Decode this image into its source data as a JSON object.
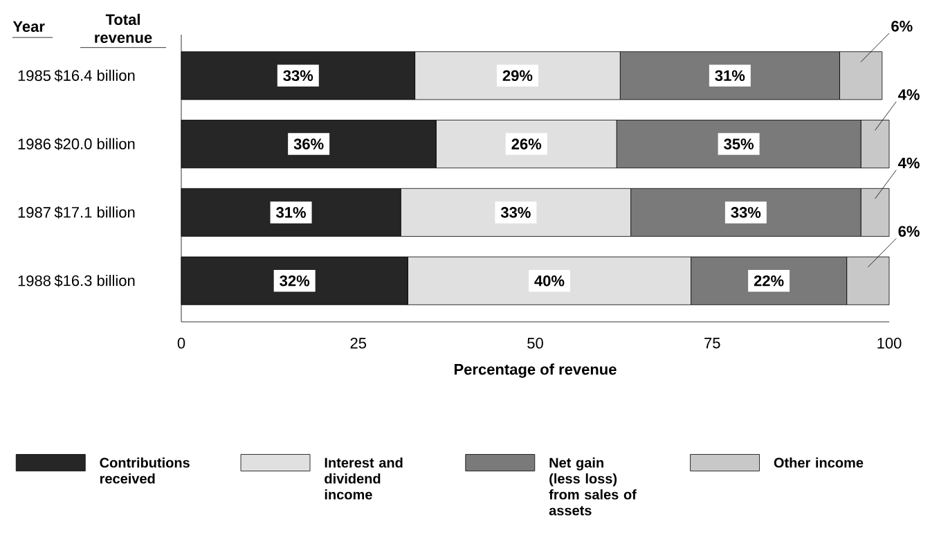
{
  "chart_data": {
    "type": "bar",
    "orientation": "horizontal",
    "stacked": true,
    "ylabel": "Year",
    "xlabel": "Percentage of revenue",
    "categories": [
      "1985",
      "1986",
      "1987",
      "1988"
    ],
    "annotations": [
      "Total revenue",
      "$16.4 billion",
      "$20.0 billion",
      "$17.1 billion",
      "$16.3 billion"
    ],
    "xlim": [
      0,
      100
    ],
    "xticks": [
      0,
      25,
      50,
      75,
      100
    ],
    "legend": "bottom",
    "series": [
      {
        "name": "Contributions received",
        "color": "#262626",
        "values": [
          33,
          36,
          31,
          32
        ],
        "value_labels": [
          "33%",
          "36%",
          "31%",
          "32%"
        ]
      },
      {
        "name": "Interest and dividend income",
        "color": "#e0e0e0",
        "values": [
          29,
          25.5,
          32.5,
          40
        ],
        "value_labels": [
          "29%",
          "26%",
          "33%",
          "40%"
        ]
      },
      {
        "name": "Net gain (less loss) from sales of assets",
        "color": "#7a7a7a",
        "values": [
          31,
          34.5,
          32.5,
          22
        ],
        "value_labels": [
          "31%",
          "35%",
          "33%",
          "22%"
        ]
      },
      {
        "name": "Other income",
        "color": "#c8c8c8",
        "values": [
          6,
          4,
          4,
          6
        ],
        "value_labels": [
          "6%",
          "4%",
          "4%",
          "6%"
        ]
      }
    ]
  }
}
